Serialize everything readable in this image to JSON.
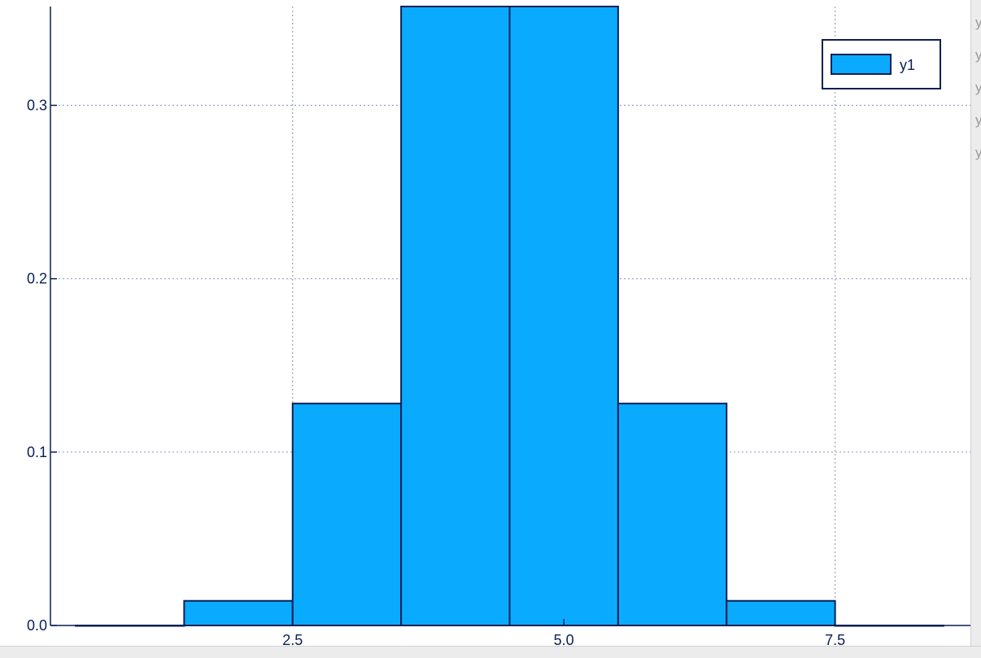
{
  "chart_data": {
    "type": "bar",
    "bin_edges": [
      0.5,
      1.5,
      2.5,
      3.5,
      4.5,
      5.5,
      6.5,
      7.5,
      8.5
    ],
    "values": [
      0.0,
      0.0142,
      0.128,
      0.357,
      0.357,
      0.128,
      0.0142,
      0.0
    ],
    "xlim": [
      0.5,
      8.5
    ],
    "ylim": [
      0.0,
      0.357
    ],
    "x_ticks": [
      2.5,
      5.0,
      7.5
    ],
    "y_ticks": [
      0.0,
      0.1,
      0.2,
      0.3
    ],
    "x_tick_labels": [
      "2.5",
      "5.0",
      "7.5"
    ],
    "y_tick_labels": [
      "0.0",
      "0.1",
      "0.2",
      "0.3"
    ],
    "series": [
      {
        "name": "y1",
        "color": "#0aabff",
        "edge_color": "#0b1f55"
      }
    ],
    "legend_position": "top-right",
    "grid": true,
    "grid_style": "dotted",
    "xlabel": "",
    "ylabel": "",
    "title": ""
  },
  "window_edge": {
    "clipped_text": [
      "y",
      "y",
      "y",
      "y",
      "y"
    ]
  }
}
